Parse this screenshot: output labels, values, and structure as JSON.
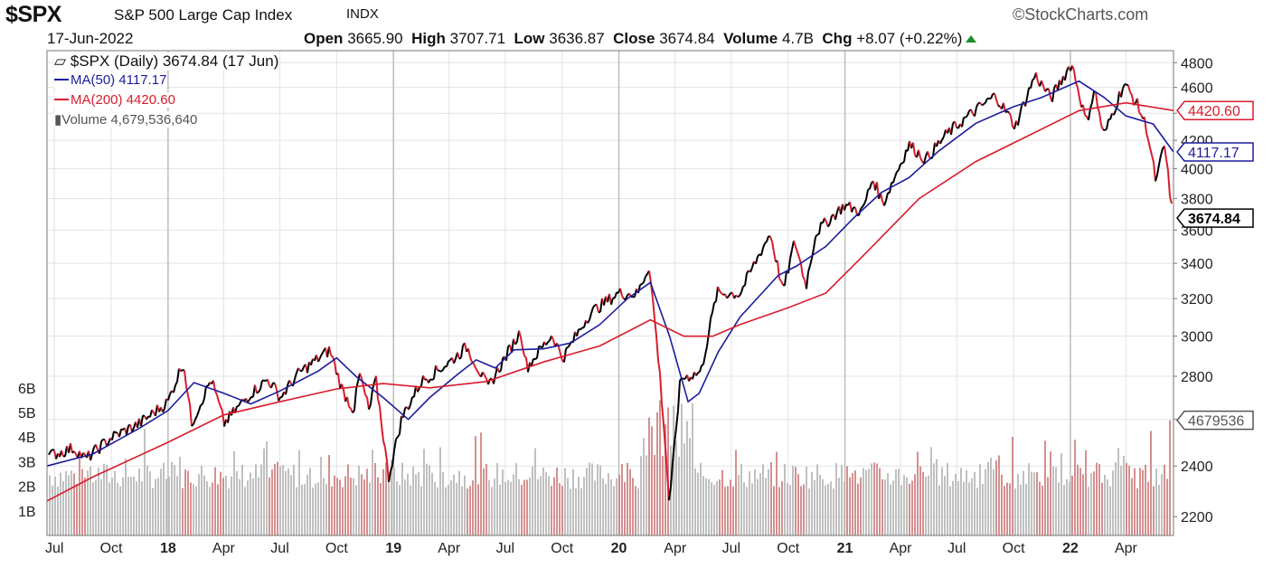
{
  "header": {
    "symbol": "$SPX",
    "full_name": "S&P 500 Large Cap Index",
    "exchange": "INDX",
    "brand": "StockCharts.com",
    "date": "17-Jun-2022",
    "open_label": "Open",
    "open": "3665.90",
    "high_label": "High",
    "high": "3707.71",
    "low_label": "Low",
    "low": "3636.87",
    "close_label": "Close",
    "close": "3674.84",
    "volume_label": "Volume",
    "volume": "4.7B",
    "chg_label": "Chg",
    "chg": "+8.07 (+0.22%)"
  },
  "legend": {
    "price": "$SPX (Daily) 3674.84 (17 Jun)",
    "ma50": "MA(50) 4117.17",
    "ma200": "MA(200) 4420.60",
    "volume": "Volume 4,679,536,640"
  },
  "colors": {
    "ma50": "#1c1c9c",
    "ma200": "#d81c2c",
    "price": "#000000",
    "down": "#d81c2c",
    "vol_up": "#b9b9b9",
    "vol_down": "#cf8484",
    "grid": "#e3e3e3",
    "up_arrow": "#1a8f2a"
  },
  "chart_data": {
    "type": "line",
    "title": "$SPX S&P 500 Large Cap Index INDX",
    "y_scale": "log",
    "ylim": [
      2130,
      4900
    ],
    "y_ticks": [
      2200,
      2400,
      2600,
      2800,
      3000,
      3200,
      3400,
      3600,
      3800,
      4000,
      4200,
      4400,
      4600,
      4800
    ],
    "y_tick_labels": [
      "2200",
      "2400",
      "",
      "2800",
      "3000",
      "3200",
      "3400",
      "3600",
      "3800",
      "4000",
      "4200",
      "",
      "4600",
      "4800"
    ],
    "x_range": [
      "2017-06-19",
      "2022-06-17"
    ],
    "x_ticks": [
      {
        "date": "2017-07-01",
        "label": "Jul"
      },
      {
        "date": "2017-10-01",
        "label": "Oct"
      },
      {
        "date": "2018-01-01",
        "label": "18",
        "major": true
      },
      {
        "date": "2018-04-01",
        "label": "Apr"
      },
      {
        "date": "2018-07-01",
        "label": "Jul"
      },
      {
        "date": "2018-10-01",
        "label": "Oct"
      },
      {
        "date": "2019-01-01",
        "label": "19",
        "major": true
      },
      {
        "date": "2019-04-01",
        "label": "Apr"
      },
      {
        "date": "2019-07-01",
        "label": "Jul"
      },
      {
        "date": "2019-10-01",
        "label": "Oct"
      },
      {
        "date": "2020-01-01",
        "label": "20",
        "major": true
      },
      {
        "date": "2020-04-01",
        "label": "Apr"
      },
      {
        "date": "2020-07-01",
        "label": "Jul"
      },
      {
        "date": "2020-10-01",
        "label": "Oct"
      },
      {
        "date": "2021-01-01",
        "label": "21",
        "major": true
      },
      {
        "date": "2021-04-01",
        "label": "Apr"
      },
      {
        "date": "2021-07-01",
        "label": "Jul"
      },
      {
        "date": "2021-10-01",
        "label": "Oct"
      },
      {
        "date": "2022-01-01",
        "label": "22",
        "major": true
      },
      {
        "date": "2022-04-01",
        "label": "Apr"
      }
    ],
    "price_tags": [
      {
        "label": "4420.60",
        "value": 4420.6,
        "color": "#d81c2c"
      },
      {
        "label": "4117.17",
        "value": 4117.17,
        "color": "#1c1c9c"
      },
      {
        "label": "3674.84",
        "value": 3674.84,
        "color": "#000000",
        "bold": true
      }
    ],
    "volume_tag": "4679536",
    "volume_axis": {
      "max_billions": 6.8,
      "ticks": [
        1,
        2,
        3,
        4,
        5,
        6
      ],
      "tick_labels": [
        "1B",
        "2B",
        "3B",
        "4B",
        "5B",
        "6B"
      ]
    },
    "series": [
      {
        "name": "$SPX (Daily)",
        "points": [
          [
            "2017-06-19",
            2440
          ],
          [
            "2017-08-01",
            2475
          ],
          [
            "2017-08-21",
            2428
          ],
          [
            "2017-10-01",
            2520
          ],
          [
            "2017-11-15",
            2580
          ],
          [
            "2018-01-01",
            2680
          ],
          [
            "2018-01-26",
            2872
          ],
          [
            "2018-02-08",
            2581
          ],
          [
            "2018-03-12",
            2786
          ],
          [
            "2018-04-02",
            2582
          ],
          [
            "2018-05-15",
            2720
          ],
          [
            "2018-06-12",
            2786
          ],
          [
            "2018-07-02",
            2700
          ],
          [
            "2018-08-01",
            2815
          ],
          [
            "2018-09-20",
            2930
          ],
          [
            "2018-10-11",
            2728
          ],
          [
            "2018-10-29",
            2641
          ],
          [
            "2018-11-07",
            2813
          ],
          [
            "2018-11-23",
            2633
          ],
          [
            "2018-12-03",
            2790
          ],
          [
            "2018-12-24",
            2351
          ],
          [
            "2019-01-15",
            2610
          ],
          [
            "2019-02-15",
            2775
          ],
          [
            "2019-04-01",
            2867
          ],
          [
            "2019-04-30",
            2945
          ],
          [
            "2019-06-03",
            2744
          ],
          [
            "2019-07-26",
            3025
          ],
          [
            "2019-08-05",
            2844
          ],
          [
            "2019-09-15",
            3007
          ],
          [
            "2019-10-02",
            2887
          ],
          [
            "2019-11-15",
            3120
          ],
          [
            "2019-12-31",
            3230
          ],
          [
            "2020-01-31",
            3225
          ],
          [
            "2020-02-19",
            3386
          ],
          [
            "2020-03-09",
            2746
          ],
          [
            "2020-03-23",
            2237
          ],
          [
            "2020-04-10",
            2790
          ],
          [
            "2020-05-13",
            2820
          ],
          [
            "2020-06-08",
            3232
          ],
          [
            "2020-07-15",
            3226
          ],
          [
            "2020-09-02",
            3580
          ],
          [
            "2020-09-23",
            3237
          ],
          [
            "2020-10-12",
            3534
          ],
          [
            "2020-10-30",
            3270
          ],
          [
            "2020-11-15",
            3585
          ],
          [
            "2020-12-31",
            3756
          ],
          [
            "2021-01-29",
            3714
          ],
          [
            "2021-02-15",
            3934
          ],
          [
            "2021-03-04",
            3768
          ],
          [
            "2021-04-15",
            4170
          ],
          [
            "2021-05-12",
            4063
          ],
          [
            "2021-06-15",
            4246
          ],
          [
            "2021-07-15",
            4360
          ],
          [
            "2021-09-02",
            4537
          ],
          [
            "2021-10-04",
            4300
          ],
          [
            "2021-11-05",
            4700
          ],
          [
            "2021-12-01",
            4513
          ],
          [
            "2022-01-03",
            4796
          ],
          [
            "2022-01-27",
            4326
          ],
          [
            "2022-02-09",
            4587
          ],
          [
            "2022-02-24",
            4225
          ],
          [
            "2022-03-29",
            4631
          ],
          [
            "2022-04-20",
            4460
          ],
          [
            "2022-05-04",
            4300
          ],
          [
            "2022-05-20",
            3900
          ],
          [
            "2022-06-02",
            4176
          ],
          [
            "2022-06-16",
            3667
          ],
          [
            "2022-06-17",
            3674.84
          ]
        ]
      },
      {
        "name": "MA(50)",
        "points": [
          [
            "2017-06-19",
            2400
          ],
          [
            "2017-09-01",
            2450
          ],
          [
            "2017-11-15",
            2560
          ],
          [
            "2018-01-01",
            2640
          ],
          [
            "2018-02-12",
            2770
          ],
          [
            "2018-04-01",
            2720
          ],
          [
            "2018-05-15",
            2670
          ],
          [
            "2018-07-01",
            2730
          ],
          [
            "2018-09-01",
            2825
          ],
          [
            "2018-10-01",
            2890
          ],
          [
            "2018-11-01",
            2800
          ],
          [
            "2018-12-15",
            2700
          ],
          [
            "2019-01-25",
            2600
          ],
          [
            "2019-03-01",
            2700
          ],
          [
            "2019-04-15",
            2810
          ],
          [
            "2019-05-15",
            2880
          ],
          [
            "2019-06-15",
            2840
          ],
          [
            "2019-07-15",
            2930
          ],
          [
            "2019-09-01",
            2935
          ],
          [
            "2019-10-15",
            2965
          ],
          [
            "2019-12-01",
            3060
          ],
          [
            "2020-01-15",
            3200
          ],
          [
            "2020-02-21",
            3290
          ],
          [
            "2020-03-23",
            3000
          ],
          [
            "2020-04-22",
            2680
          ],
          [
            "2020-05-10",
            2720
          ],
          [
            "2020-06-10",
            2920
          ],
          [
            "2020-07-15",
            3100
          ],
          [
            "2020-09-15",
            3330
          ],
          [
            "2020-10-15",
            3385
          ],
          [
            "2020-12-01",
            3500
          ],
          [
            "2021-01-15",
            3675
          ],
          [
            "2021-03-01",
            3840
          ],
          [
            "2021-04-15",
            3940
          ],
          [
            "2021-06-01",
            4120
          ],
          [
            "2021-08-01",
            4325
          ],
          [
            "2021-10-01",
            4450
          ],
          [
            "2021-11-15",
            4520
          ],
          [
            "2022-01-15",
            4650
          ],
          [
            "2022-02-25",
            4520
          ],
          [
            "2022-04-01",
            4380
          ],
          [
            "2022-05-15",
            4320
          ],
          [
            "2022-06-17",
            4117.17
          ]
        ]
      },
      {
        "name": "MA(200)",
        "points": [
          [
            "2017-06-19",
            2260
          ],
          [
            "2017-09-01",
            2355
          ],
          [
            "2018-01-01",
            2500
          ],
          [
            "2018-04-01",
            2620
          ],
          [
            "2018-07-01",
            2680
          ],
          [
            "2018-10-01",
            2740
          ],
          [
            "2018-12-15",
            2765
          ],
          [
            "2019-03-01",
            2745
          ],
          [
            "2019-06-01",
            2775
          ],
          [
            "2019-09-01",
            2870
          ],
          [
            "2019-12-01",
            2950
          ],
          [
            "2020-02-21",
            3085
          ],
          [
            "2020-04-15",
            3000
          ],
          [
            "2020-06-01",
            3000
          ],
          [
            "2020-07-15",
            3060
          ],
          [
            "2020-10-01",
            3150
          ],
          [
            "2020-12-01",
            3230
          ],
          [
            "2021-02-01",
            3450
          ],
          [
            "2021-05-01",
            3800
          ],
          [
            "2021-08-01",
            4050
          ],
          [
            "2021-11-01",
            4250
          ],
          [
            "2022-01-15",
            4420
          ],
          [
            "2022-04-01",
            4480
          ],
          [
            "2022-06-17",
            4420.6
          ]
        ]
      }
    ]
  }
}
